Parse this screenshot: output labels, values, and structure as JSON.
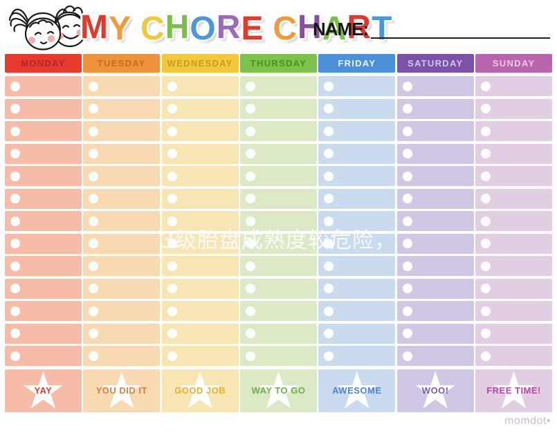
{
  "header": {
    "title_text": "MY CHORE CHART",
    "title_letters": [
      {
        "ch": "M",
        "color": "#DE3A2E"
      },
      {
        "ch": "Y",
        "color": "#F0993D"
      },
      {
        "ch": " "
      },
      {
        "ch": "C",
        "color": "#F2C83B"
      },
      {
        "ch": "H",
        "color": "#7CBE4B"
      },
      {
        "ch": "O",
        "color": "#4D96DA"
      },
      {
        "ch": "R",
        "color": "#9A6CB8"
      },
      {
        "ch": "E",
        "color": "#DE3A2E"
      },
      {
        "ch": " "
      },
      {
        "ch": "C",
        "color": "#F0993D"
      },
      {
        "ch": "H",
        "color": "#8A4E9F"
      },
      {
        "ch": "A",
        "color": "#7CBE4B"
      },
      {
        "ch": "R",
        "color": "#DE3A2E"
      },
      {
        "ch": "T",
        "color": "#4D96DA"
      }
    ],
    "name_label": "NAME:",
    "name_value": ""
  },
  "rows_per_column": 13,
  "columns": [
    {
      "day": "MONDAY",
      "header_bg": "#E73B30",
      "header_text": "#A8292C",
      "row_bg": "#F6BCA8",
      "footer_label": "YAY",
      "footer_text": "#CE4237"
    },
    {
      "day": "TUESDAY",
      "header_bg": "#F0913C",
      "header_text": "#BF6F23",
      "row_bg": "#F9D9B2",
      "footer_label": "YOU DID IT",
      "footer_text": "#C8854B"
    },
    {
      "day": "WEDNESDAY",
      "header_bg": "#F3C83C",
      "header_text": "#C79A23",
      "row_bg": "#F8E5B4",
      "footer_label": "GOOD JOB",
      "footer_text": "#DFB233"
    },
    {
      "day": "THURSDAY",
      "header_bg": "#7FC24B",
      "header_text": "#4E8E27",
      "row_bg": "#DBEAC4",
      "footer_label": "WAY TO GO",
      "footer_text": "#6EAE4E"
    },
    {
      "day": "FRIDAY",
      "header_bg": "#4B90D8",
      "header_text": "#F2F7FD",
      "row_bg": "#CADAEF",
      "footer_label": "AWESOME",
      "footer_text": "#4B82D5"
    },
    {
      "day": "SATURDAY",
      "header_bg": "#7C52A8",
      "header_text": "#D5C5EC",
      "row_bg": "#D0C7E5",
      "footer_label": "WOO!",
      "footer_text": "#7A58AC"
    },
    {
      "day": "SUNDAY",
      "header_bg": "#B965AE",
      "header_text": "#EFC8E5",
      "row_bg": "#E2CEE2",
      "footer_label": "FREE TIME!",
      "footer_text": "#B34AA2"
    }
  ],
  "star_icon": "star-shape",
  "check_icon": "circle-shape",
  "watermark_text": "3级胎盘成熟度较危险，",
  "brand_text": "momdot•"
}
